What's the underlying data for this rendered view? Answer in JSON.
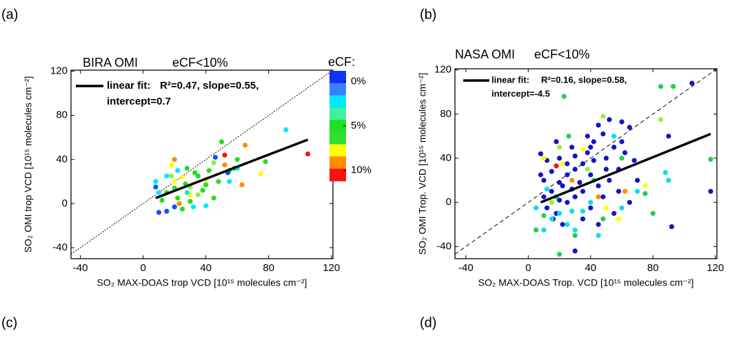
{
  "panel_labels": [
    "(a)",
    "(b)",
    "(c)",
    "(d)"
  ],
  "chart_data": [
    {
      "type": "scatter",
      "title": "BIRA OMI",
      "subtitle": "eCF<10%",
      "x_label": "SO₂ MAX-DOAS trop VCD [10¹⁵ molecules cm⁻²]",
      "y_label": "SO₂ OMI trop VCD [10¹⁵ molecules cm⁻²]",
      "xlim": [
        -46,
        121
      ],
      "ylim": [
        -50,
        121
      ],
      "xticks": [
        -40,
        0,
        40,
        80,
        120
      ],
      "yticks": [
        -40,
        0,
        40,
        80,
        120
      ],
      "annotations": [
        "linear fit:",
        "R²=0.47, slope=0.55,",
        "intercept=0.7"
      ],
      "fit_line": {
        "x": [
          8,
          105
        ],
        "y": [
          5,
          58
        ],
        "color": "#000000"
      },
      "colorbar": {
        "title": "eCF:",
        "clim": [
          -1.2,
          11.2
        ],
        "colors": [
          "#1030ff",
          "#3a80ff",
          "#00e8ff",
          "#40f0a0",
          "#20e020",
          "#30e030",
          "#ffff00",
          "#ff8c00",
          "#ff1010"
        ],
        "ticks": [
          {
            "value": 0,
            "label": "0%"
          },
          {
            "value": 5,
            "label": "5%"
          },
          {
            "value": 10,
            "label": "10%"
          }
        ]
      },
      "series": [
        {
          "color": "#ff1010",
          "x": [
            105,
            52
          ],
          "y": [
            45,
            44
          ]
        },
        {
          "color": "#ff8c00",
          "x": [
            20,
            65,
            63,
            23,
            52
          ],
          "y": [
            40,
            53,
            17,
            0,
            35
          ]
        },
        {
          "color": "#ffff00",
          "x": [
            18,
            25,
            40,
            75,
            30,
            20
          ],
          "y": [
            35,
            24,
            22,
            27,
            8,
            20
          ]
        },
        {
          "color": "#20e020",
          "x": [
            50,
            28,
            35,
            40,
            45,
            55,
            15,
            22,
            30,
            38,
            48,
            60,
            20,
            27,
            33,
            42,
            78,
            58,
            25,
            12
          ],
          "y": [
            56,
            32,
            25,
            17,
            5,
            30,
            10,
            5,
            2,
            12,
            20,
            40,
            14,
            18,
            28,
            30,
            38,
            32,
            -5,
            3
          ]
        },
        {
          "color": "#90f040",
          "x": [
            45,
            30,
            18,
            35
          ],
          "y": [
            37,
            15,
            25,
            8
          ]
        },
        {
          "color": "#00e8ff",
          "x": [
            91,
            8,
            15,
            55,
            32,
            40,
            28,
            22,
            60,
            10
          ],
          "y": [
            67,
            20,
            25,
            20,
            -3,
            -2,
            10,
            30,
            32,
            10
          ]
        },
        {
          "color": "#1050ff",
          "x": [
            10,
            46,
            54,
            20,
            15,
            8
          ],
          "y": [
            -8,
            42,
            28,
            -3,
            -7,
            15
          ]
        }
      ]
    },
    {
      "type": "scatter",
      "title": "NASA OMI",
      "subtitle": "eCF<10%",
      "x_label": "SO₂ MAX-DOAS Trop. VCD [10¹⁵ molecules cm⁻²]",
      "y_label": "SO₂ OMI Trop. VCD [10¹⁵ molecules cm⁻²]",
      "xlim": [
        -47,
        121
      ],
      "ylim": [
        -51,
        121
      ],
      "xticks": [
        -40,
        0,
        40,
        80,
        120
      ],
      "yticks": [
        -40,
        0,
        40,
        80,
        120
      ],
      "annotations": [
        "linear fit:",
        "R²=0.16, slope=0.58,",
        "intercept=-4.5"
      ],
      "fit_line": {
        "x": [
          8,
          117
        ],
        "y": [
          0,
          62
        ],
        "color": "#000000"
      },
      "series": [
        {
          "color": "#1414c8",
          "x": [
            105,
            30,
            50,
            45,
            60,
            65,
            42,
            38,
            48,
            55,
            35,
            30,
            25,
            20,
            15,
            10,
            12,
            18,
            25,
            28,
            33,
            40,
            45,
            52,
            58,
            62,
            70,
            20,
            15,
            8,
            10,
            22,
            35,
            40,
            48,
            55,
            65,
            38,
            28,
            18,
            52,
            30,
            25,
            42,
            60,
            12,
            8,
            35,
            45,
            20,
            117,
            92,
            90,
            50,
            30,
            22,
            40,
            58,
            68,
            16
          ],
          "y": [
            108,
            -44,
            40,
            70,
            73,
            68,
            55,
            45,
            62,
            50,
            35,
            30,
            25,
            18,
            10,
            5,
            -5,
            -10,
            0,
            12,
            18,
            25,
            15,
            20,
            30,
            45,
            20,
            40,
            28,
            44,
            20,
            -20,
            -15,
            -5,
            5,
            -10,
            0,
            60,
            50,
            55,
            75,
            5,
            35,
            38,
            55,
            38,
            25,
            10,
            -20,
            2,
            10,
            -22,
            60,
            30,
            42,
            15,
            50,
            10,
            38,
            -15
          ]
        },
        {
          "color": "#00e0f0",
          "x": [
            28,
            10,
            15,
            35,
            45,
            20,
            60,
            88,
            90,
            70,
            40,
            25,
            5,
            12,
            55,
            30
          ],
          "y": [
            -8,
            -25,
            -15,
            -8,
            -30,
            -10,
            -5,
            27,
            20,
            10,
            0,
            -20,
            -5,
            12,
            60,
            -25
          ]
        },
        {
          "color": "#20d050",
          "x": [
            23,
            85,
            93,
            117,
            20,
            5,
            10,
            30,
            48,
            75,
            80,
            60,
            18,
            42,
            26
          ],
          "y": [
            96,
            105,
            105,
            39,
            -47,
            -25,
            -12,
            -30,
            -15,
            8,
            -10,
            40,
            5,
            20,
            60
          ]
        },
        {
          "color": "#90f040",
          "x": [
            20,
            48,
            85,
            38,
            15
          ],
          "y": [
            50,
            78,
            75,
            30,
            0
          ]
        },
        {
          "color": "#ffff00",
          "x": [
            22,
            58,
            75,
            10,
            35,
            50
          ],
          "y": [
            35,
            -15,
            15,
            40,
            48,
            -5
          ]
        },
        {
          "color": "#ff8c00",
          "x": [
            62,
            45,
            28
          ],
          "y": [
            10,
            5,
            20
          ]
        },
        {
          "color": "#ff1010",
          "x": [
            18
          ],
          "y": [
            33
          ]
        }
      ]
    }
  ]
}
